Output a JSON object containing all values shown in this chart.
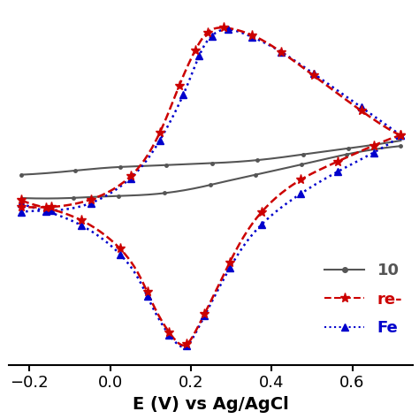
{
  "title": "",
  "xlabel": "E (V) vs Ag/AgCl",
  "ylabel": "",
  "xlim": [
    -0.25,
    0.75
  ],
  "ylim": [
    -1.0,
    1.0
  ],
  "xticks": [
    -0.2,
    0.0,
    0.2,
    0.4,
    0.6
  ],
  "background_color": "#ffffff",
  "legend_labels": [
    "10",
    "re-",
    "Fe"
  ],
  "legend_colors": [
    "#555555",
    "#cc0000",
    "#0000cc"
  ],
  "line1_color": "#555555",
  "line2_color": "#cc0000",
  "line3_color": "#0000cc"
}
